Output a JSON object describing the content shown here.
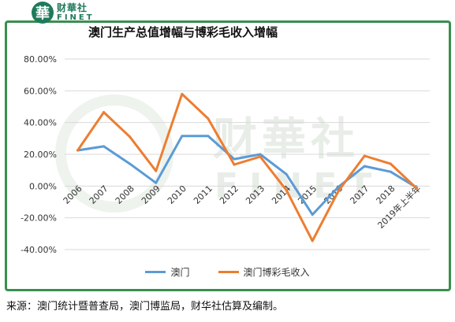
{
  "brand": {
    "logo_glyph": "華",
    "name_cn": "财華社",
    "name_en": "FINET"
  },
  "chart_title": "澳门生产总值增幅与博彩毛收入增幅",
  "source_note": "来源：澳门统计暨普查局，澳门博监局，财华社估算及编制。",
  "watermark": {
    "cn": "财華社",
    "en": "FINET"
  },
  "colors": {
    "border": "#3a8f4f",
    "series_macau": "#5b9bd5",
    "series_gaming": "#ed7d31",
    "grid": "#d9d9d9"
  },
  "chart_data": {
    "type": "line",
    "title": "澳门生产总值增幅与博彩毛收入增幅",
    "categories": [
      "2006",
      "2007",
      "2008",
      "2009",
      "2010",
      "2011",
      "2012",
      "2013",
      "2014",
      "2015",
      "2016",
      "2017",
      "2018",
      "2019年上半年"
    ],
    "ylim": [
      -40,
      80
    ],
    "y_ticks": [
      "80.00%",
      "60.00%",
      "40.00%",
      "20.00%",
      "0.00%",
      "-20.00%",
      "-40.00%"
    ],
    "y_tick_values": [
      80,
      60,
      40,
      20,
      0,
      -20,
      -40
    ],
    "grid": true,
    "legend_position": "bottom",
    "series": [
      {
        "name": "澳门",
        "color": "#5b9bd5",
        "values": [
          22.5,
          25,
          14,
          2,
          31.5,
          31.5,
          17,
          20,
          7.5,
          -18,
          -0.5,
          12.5,
          9,
          -1
        ]
      },
      {
        "name": "澳门博彩毛收入",
        "color": "#ed7d31",
        "values": [
          22.5,
          46.5,
          31,
          9.5,
          58,
          42.5,
          13.5,
          18.5,
          -2.5,
          -34.5,
          -3,
          19,
          14,
          -1.5
        ]
      }
    ]
  }
}
